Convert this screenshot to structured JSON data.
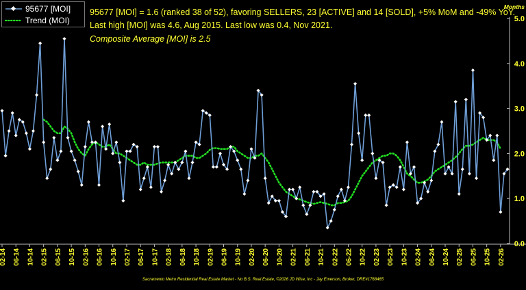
{
  "chart_data": {
    "type": "line",
    "title_lines": [
      "95677 [MOI] = 1.6 (ranked 38 of 52), favoring SELLERS, 23 [ACTIVE] and 14 [SOLD], +5% MoM and -49% YoY.",
      "Last high [MOI] was 4.6, Aug 2015. Last low was 0.4, Nov 2021.",
      "Composite Average [MOI] is 2.5"
    ],
    "ylabel": "Months",
    "ylim": [
      0,
      5
    ],
    "y_ticks": [
      "0.0",
      "1.0",
      "2.0",
      "3.0",
      "4.0",
      "5.0"
    ],
    "x_ticks": [
      "02-14",
      "06-14",
      "10-14",
      "02-15",
      "06-15",
      "10-15",
      "02-16",
      "06-16",
      "10-16",
      "02-17",
      "06-17",
      "10-17",
      "02-18",
      "06-18",
      "10-18",
      "02-19",
      "06-19",
      "10-19",
      "02-20",
      "06-20",
      "10-20",
      "02-21",
      "06-21",
      "10-21",
      "02-22",
      "06-22",
      "10-22",
      "02-23",
      "06-23",
      "10-23",
      "02-24",
      "06-24",
      "10-24",
      "02-25",
      "06-25",
      "10-25",
      "02-26"
    ],
    "grid": false,
    "legend_position": "top-left",
    "series": [
      {
        "name": "95677 [MOI]",
        "color": "#6f9fd8",
        "marker": "diamond",
        "values": [
          2.95,
          1.95,
          2.5,
          2.9,
          2.4,
          2.75,
          2.7,
          2.45,
          2.1,
          2.5,
          3.3,
          4.45,
          2.25,
          1.45,
          1.65,
          2.35,
          1.85,
          2.05,
          4.55,
          2.35,
          2.05,
          1.85,
          1.6,
          1.3,
          2.15,
          2.7,
          2.25,
          2.25,
          1.3,
          2.6,
          2.1,
          2.65,
          2.0,
          2.25,
          1.8,
          0.95,
          2.05,
          2.05,
          2.2,
          2.15,
          1.2,
          1.45,
          1.7,
          1.25,
          2.15,
          2.15,
          1.15,
          1.4,
          1.75,
          1.55,
          1.8,
          1.65,
          1.8,
          2.05,
          1.45,
          1.8,
          2.25,
          2.2,
          2.95,
          2.9,
          2.85,
          1.7,
          1.7,
          2.0,
          1.75,
          1.65,
          2.15,
          2.05,
          1.85,
          1.65,
          1.1,
          1.4,
          2.1,
          1.9,
          3.4,
          3.3,
          1.45,
          0.9,
          1.05,
          0.95,
          0.95,
          0.7,
          0.6,
          1.2,
          1.2,
          1.0,
          1.25,
          0.85,
          0.65,
          0.85,
          1.15,
          1.15,
          1.05,
          1.1,
          0.35,
          0.5,
          0.75,
          1.05,
          1.2,
          0.95,
          1.25,
          2.2,
          3.55,
          2.45,
          1.85,
          2.85,
          2.85,
          2.0,
          1.45,
          1.85,
          1.8,
          0.85,
          1.25,
          1.3,
          1.25,
          1.7,
          1.2,
          2.25,
          1.55,
          1.7,
          0.9,
          1.0,
          1.35,
          1.15,
          1.4,
          2.05,
          2.2,
          2.7,
          1.55,
          1.7,
          1.55,
          3.15,
          1.1,
          1.65,
          3.2,
          1.55,
          3.85,
          1.45,
          2.9,
          2.8,
          2.3,
          2.4,
          1.85,
          2.4,
          0.7,
          1.55,
          1.65
        ]
      },
      {
        "name": "Trend (MOI)",
        "color": "#22dd22",
        "line_style": "dotted",
        "values": [
          null,
          null,
          null,
          null,
          null,
          null,
          null,
          null,
          null,
          null,
          null,
          null,
          2.75,
          2.7,
          2.6,
          2.5,
          2.45,
          2.45,
          2.6,
          2.55,
          2.45,
          2.25,
          2.1,
          2.0,
          1.95,
          2.1,
          2.2,
          2.25,
          2.2,
          2.15,
          2.15,
          2.2,
          2.1,
          2.0,
          2.0,
          1.95,
          1.9,
          1.85,
          1.8,
          1.75,
          1.75,
          1.8,
          1.75,
          1.75,
          1.75,
          1.78,
          1.8,
          1.8,
          1.8,
          1.8,
          1.8,
          1.85,
          1.9,
          1.95,
          1.95,
          1.95,
          1.9,
          1.9,
          1.95,
          2.0,
          2.08,
          2.12,
          2.12,
          2.1,
          2.1,
          2.1,
          2.15,
          2.15,
          2.05,
          2.0,
          1.95,
          1.9,
          1.9,
          1.95,
          1.95,
          2.0,
          1.9,
          1.8,
          1.65,
          1.5,
          1.35,
          1.25,
          1.15,
          1.1,
          1.05,
          1.0,
          0.98,
          0.95,
          0.92,
          0.9,
          0.88,
          0.9,
          0.92,
          0.9,
          0.88,
          0.85,
          0.85,
          0.9,
          0.9,
          0.92,
          0.95,
          1.05,
          1.2,
          1.35,
          1.5,
          1.6,
          1.7,
          1.8,
          1.85,
          1.9,
          1.95,
          1.95,
          2.0,
          2.0,
          1.95,
          1.85,
          1.7,
          1.55,
          1.5,
          1.42,
          1.35,
          1.35,
          1.38,
          1.42,
          1.5,
          1.6,
          1.65,
          1.7,
          1.75,
          1.8,
          1.85,
          1.92,
          2.0,
          2.1,
          2.17,
          2.17,
          2.2,
          2.25,
          2.3,
          2.35,
          2.3,
          2.3,
          2.3,
          2.25,
          2.1
        ]
      }
    ],
    "legend_labels": [
      "95677 [MOI]",
      "Trend (MOI)"
    ],
    "footer": "Sacramento Metro Residential Real Estate Market - No B.S. Real Estate, ©2026 JD Wise, Inc - Jay Emerson, Broker, DRE#1768465"
  }
}
